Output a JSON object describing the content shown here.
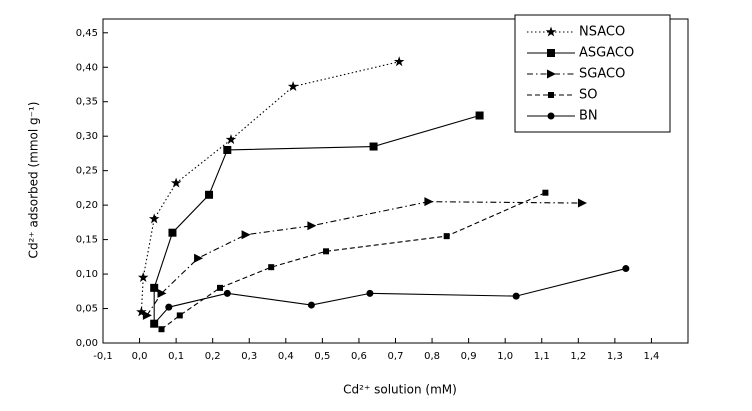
{
  "chart_data": {
    "type": "scatter",
    "x_label": "Cd²⁺ solution (mM)",
    "y_label": "Cd²⁺ adsorbed (mmol g⁻¹)",
    "xlim": [
      -0.1,
      1.5
    ],
    "ylim": [
      0,
      0.47
    ],
    "xticks": [
      {
        "value": -0.1,
        "label": "-0,1"
      },
      {
        "value": 0,
        "label": "0,0"
      },
      {
        "value": 0.1,
        "label": "0,1"
      },
      {
        "value": 0.2,
        "label": "0,2"
      },
      {
        "value": 0.3,
        "label": "0,3"
      },
      {
        "value": 0.4,
        "label": "0,4"
      },
      {
        "value": 0.5,
        "label": "0,5"
      },
      {
        "value": 0.6,
        "label": "0,6"
      },
      {
        "value": 0.7,
        "label": "0,7"
      },
      {
        "value": 0.8,
        "label": "0,8"
      },
      {
        "value": 0.9,
        "label": "0,9"
      },
      {
        "value": 1.0,
        "label": "1,0"
      },
      {
        "value": 1.1,
        "label": "1,1"
      },
      {
        "value": 1.2,
        "label": "1,2"
      },
      {
        "value": 1.3,
        "label": "1,3"
      },
      {
        "value": 1.4,
        "label": "1,4"
      }
    ],
    "yticks": [
      {
        "value": 0,
        "label": "0,00"
      },
      {
        "value": 0.05,
        "label": "0,05"
      },
      {
        "value": 0.1,
        "label": "0,10"
      },
      {
        "value": 0.15,
        "label": "0,15"
      },
      {
        "value": 0.2,
        "label": "0,20"
      },
      {
        "value": 0.25,
        "label": "0,25"
      },
      {
        "value": 0.3,
        "label": "0,30"
      },
      {
        "value": 0.35,
        "label": "0,35"
      },
      {
        "value": 0.4,
        "label": "0,40"
      },
      {
        "value": 0.45,
        "label": "0,45"
      }
    ],
    "legend": "upper right",
    "series": [
      {
        "name": "NSACO",
        "color": "#000000",
        "marker": "star",
        "dash": "dotted",
        "x": [
          0.005,
          0.01,
          0.04,
          0.1,
          0.25,
          0.42,
          0.71
        ],
        "values": [
          0.045,
          0.095,
          0.18,
          0.232,
          0.295,
          0.372,
          0.408
        ]
      },
      {
        "name": "ASGACO",
        "color": "#000000",
        "marker": "square",
        "dash": "solid",
        "x": [
          0.04,
          0.04,
          0.09,
          0.19,
          0.24,
          0.64,
          0.93
        ],
        "values": [
          0.028,
          0.08,
          0.16,
          0.215,
          0.28,
          0.285,
          0.33
        ]
      },
      {
        "name": "SGACO",
        "color": "#000000",
        "marker": "triangle",
        "dash": "dashdot",
        "x": [
          0.02,
          0.06,
          0.16,
          0.29,
          0.47,
          0.79,
          1.21
        ],
        "values": [
          0.04,
          0.072,
          0.123,
          0.157,
          0.17,
          0.205,
          0.203
        ]
      },
      {
        "name": "SO",
        "color": "#000000",
        "marker": "smallsquare",
        "dash": "dashed",
        "x": [
          0.06,
          0.11,
          0.22,
          0.36,
          0.51,
          0.84,
          1.11
        ],
        "values": [
          0.02,
          0.04,
          0.08,
          0.11,
          0.133,
          0.155,
          0.218
        ]
      },
      {
        "name": "BN",
        "color": "#000000",
        "marker": "circle",
        "dash": "solid",
        "x": [
          0.04,
          0.08,
          0.24,
          0.47,
          0.63,
          1.03,
          1.33
        ],
        "values": [
          0.028,
          0.052,
          0.072,
          0.055,
          0.072,
          0.068,
          0.108
        ]
      }
    ]
  }
}
